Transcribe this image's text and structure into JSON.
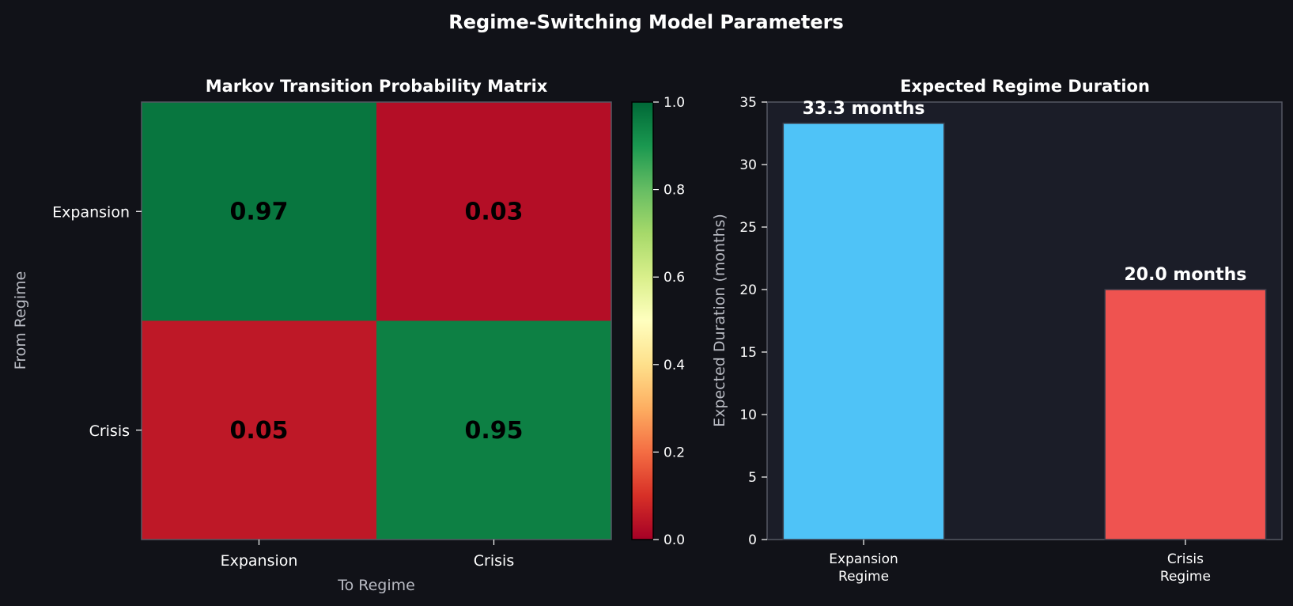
{
  "figure": {
    "title": "Regime-Switching Model Parameters",
    "background": "#111218",
    "panel_background": "#1b1d28"
  },
  "chart_data": [
    {
      "type": "heatmap",
      "title": "Markov Transition Probability Matrix",
      "xlabel": "To Regime",
      "ylabel": "From Regime",
      "x_categories": [
        "Expansion",
        "Crisis"
      ],
      "y_categories": [
        "Expansion",
        "Crisis"
      ],
      "values": [
        [
          0.97,
          0.03
        ],
        [
          0.05,
          0.95
        ]
      ],
      "cell_labels": [
        [
          "0.97",
          "0.03"
        ],
        [
          "0.05",
          "0.95"
        ]
      ],
      "colormap": "RdYlGn",
      "colorbar": {
        "range": [
          0,
          1
        ],
        "ticks": [
          "0.0",
          "0.2",
          "0.4",
          "0.6",
          "0.8",
          "1.0"
        ],
        "tick_values": [
          0,
          0.2,
          0.4,
          0.6,
          0.8,
          1.0
        ]
      }
    },
    {
      "type": "bar",
      "title": "Expected Regime Duration",
      "xlabel": "",
      "ylabel": "Expected Duration (months)",
      "categories": [
        [
          "Expansion",
          "Regime"
        ],
        [
          "Crisis",
          "Regime"
        ]
      ],
      "values": [
        33.3,
        20.0
      ],
      "value_labels": [
        "33.3 months",
        "20.0 months"
      ],
      "colors": [
        "#4fc3f7",
        "#ef5350"
      ],
      "ylim": [
        0,
        35
      ],
      "yticks": [
        0,
        5,
        10,
        15,
        20,
        25,
        30,
        35
      ],
      "grid": false
    }
  ]
}
